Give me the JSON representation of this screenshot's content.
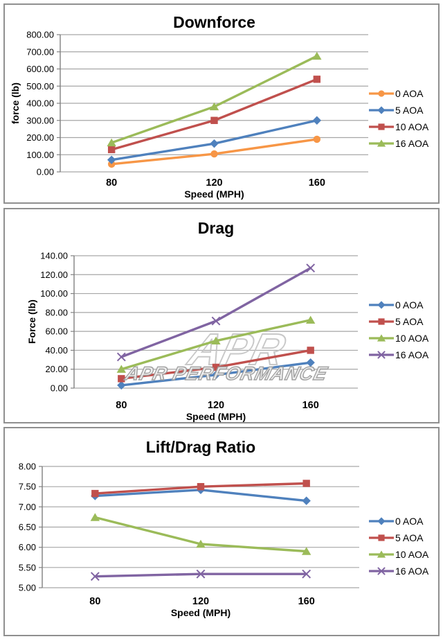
{
  "chart_data": [
    {
      "type": "line",
      "title": "Downforce",
      "xlabel": "Speed (MPH)",
      "ylabel": "force (lb)",
      "categories": [
        "80",
        "120",
        "160"
      ],
      "ylim": [
        0,
        800
      ],
      "ystep": 100,
      "ytick_labels": [
        "0.00",
        "100.00",
        "200.00",
        "300.00",
        "400.00",
        "500.00",
        "600.00",
        "700.00",
        "800.00"
      ],
      "grid": true,
      "legend_position": "right",
      "series": [
        {
          "name": "0 AOA",
          "color": "#F79646",
          "marker": "circle",
          "values": [
            45,
            105,
            190
          ]
        },
        {
          "name": "5 AOA",
          "color": "#4F81BD",
          "marker": "diamond",
          "values": [
            70,
            165,
            300
          ]
        },
        {
          "name": "10 AOA",
          "color": "#C0504D",
          "marker": "square",
          "values": [
            130,
            300,
            540
          ]
        },
        {
          "name": "16 AOA",
          "color": "#9BBB59",
          "marker": "triangle",
          "values": [
            170,
            380,
            675
          ]
        }
      ]
    },
    {
      "type": "line",
      "title": "Drag",
      "xlabel": "Speed (MPH)",
      "ylabel": "Force (lb)",
      "categories": [
        "80",
        "120",
        "160"
      ],
      "ylim": [
        0,
        140
      ],
      "ystep": 20,
      "ytick_labels": [
        "0.00",
        "20.00",
        "40.00",
        "60.00",
        "80.00",
        "100.00",
        "120.00",
        "140.00"
      ],
      "grid": true,
      "legend_position": "right",
      "watermark": {
        "logo": "APR",
        "label": "APR PERFORMANCE"
      },
      "series": [
        {
          "name": "0 AOA",
          "color": "#4F81BD",
          "marker": "diamond",
          "values": [
            3,
            14,
            27
          ]
        },
        {
          "name": "5 AOA",
          "color": "#C0504D",
          "marker": "square",
          "values": [
            10,
            22,
            40
          ]
        },
        {
          "name": "10 AOA",
          "color": "#9BBB59",
          "marker": "triangle",
          "values": [
            20,
            50,
            72
          ]
        },
        {
          "name": "16 AOA",
          "color": "#8064A2",
          "marker": "x",
          "values": [
            33,
            71,
            127
          ]
        }
      ]
    },
    {
      "type": "line",
      "title": "Lift/Drag Ratio",
      "xlabel": "Speed (MPH)",
      "ylabel": "",
      "categories": [
        "80",
        "120",
        "160"
      ],
      "ylim": [
        5,
        8
      ],
      "ystep": 0.5,
      "ytick_labels": [
        "5.00",
        "5.50",
        "6.00",
        "6.50",
        "7.00",
        "7.50",
        "8.00"
      ],
      "grid": true,
      "legend_position": "right",
      "series": [
        {
          "name": "0 AOA",
          "color": "#4F81BD",
          "marker": "diamond",
          "values": [
            7.27,
            7.42,
            7.15
          ]
        },
        {
          "name": "5 AOA",
          "color": "#C0504D",
          "marker": "square",
          "values": [
            7.33,
            7.5,
            7.58
          ]
        },
        {
          "name": "10 AOA",
          "color": "#9BBB59",
          "marker": "triangle",
          "values": [
            6.74,
            6.08,
            5.9
          ]
        },
        {
          "name": "16 AOA",
          "color": "#8064A2",
          "marker": "x",
          "values": [
            5.28,
            5.34,
            5.34
          ]
        }
      ]
    }
  ]
}
